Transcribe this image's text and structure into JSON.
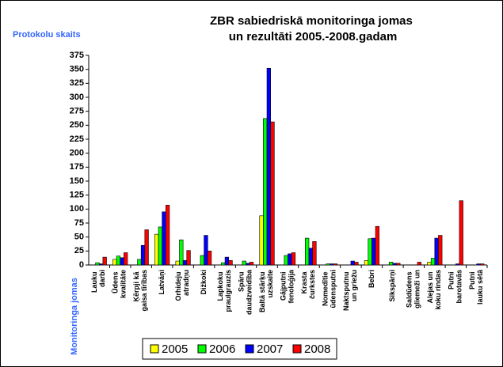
{
  "chart_data": {
    "type": "bar",
    "title": "ZBR sabiedriskā monitoringa jomas un rezultāti 2005.-2008.gadam",
    "y_label": "Protokolu skaits",
    "x_label": "Monitoringa jomas",
    "categories": [
      "Lauku darbi",
      "Ūdens kvalitāte",
      "Ķērpji kā gaisa tīrības",
      "Latvāņi",
      "Orhideju atradņu",
      "Dižkoki",
      "Lapkoku praulgrauzis",
      "Spāru daudzveidība",
      "Baltā stārķu uzskaite",
      "Gājputni fenoloģija",
      "Krasta čurkstes",
      "Nomedītie ūdensputni",
      "Naktsputnu un griežu",
      "Bebri",
      "Sikspārņi",
      "Saldūdens gliemeži un",
      "Alejas un koku rindas",
      "Putni barotavās",
      "Putni lauku sētā"
    ],
    "series": [
      {
        "name": "2005",
        "color": "#ffff00",
        "values": [
          0,
          10,
          0,
          55,
          7,
          0,
          0,
          0,
          88,
          0,
          0,
          0,
          0,
          8,
          0,
          0,
          5,
          0,
          0
        ]
      },
      {
        "name": "2006",
        "color": "#00ff00",
        "values": [
          4,
          16,
          10,
          68,
          45,
          17,
          4,
          7,
          262,
          17,
          48,
          2,
          0,
          47,
          5,
          0,
          12,
          0,
          0
        ]
      },
      {
        "name": "2007",
        "color": "#0000ff",
        "values": [
          2,
          13,
          35,
          95,
          8,
          53,
          14,
          3,
          352,
          20,
          30,
          2,
          7,
          48,
          3,
          0,
          48,
          2,
          2
        ]
      },
      {
        "name": "2008",
        "color": "#ff0000",
        "values": [
          14,
          22,
          63,
          107,
          26,
          25,
          8,
          5,
          256,
          22,
          42,
          2,
          5,
          69,
          3,
          5,
          53,
          115,
          2
        ]
      }
    ],
    "ylim": [
      0,
      375
    ],
    "yticks": [
      0,
      25,
      50,
      75,
      100,
      125,
      150,
      175,
      200,
      225,
      250,
      275,
      300,
      325,
      350,
      375
    ],
    "legend": "bottom"
  }
}
